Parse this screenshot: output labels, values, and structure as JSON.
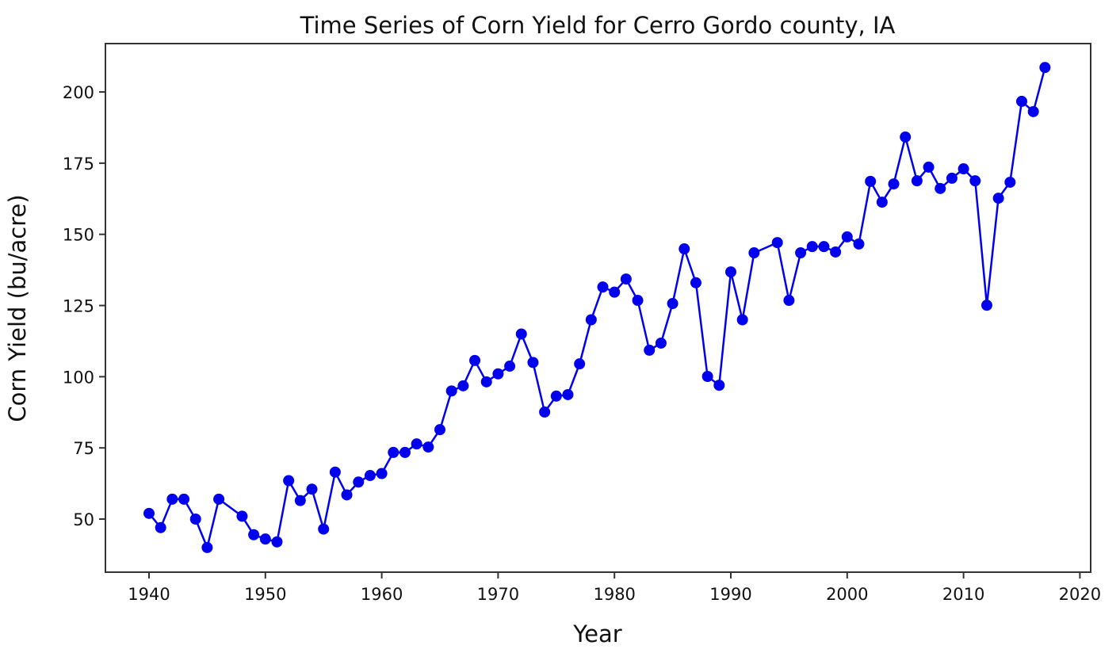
{
  "chart_data": {
    "type": "line",
    "title": "Time Series of Corn Yield for Cerro Gordo county, IA",
    "xlabel": "Year",
    "ylabel": "Corn Yield (bu/acre)",
    "xlim": [
      1936.8,
      2021
    ],
    "ylim": [
      32,
      217
    ],
    "xticks": [
      1940,
      1950,
      1960,
      1970,
      1980,
      1990,
      2000,
      2010,
      2020
    ],
    "yticks": [
      50,
      75,
      100,
      125,
      150,
      175,
      200
    ],
    "grid": false,
    "legend": null,
    "marker": "circle",
    "color": "#0000ee",
    "series": [
      {
        "name": "Corn Yield",
        "x": [
          1940,
          1941,
          1942,
          1943,
          1944,
          1945,
          1946,
          1948,
          1949,
          1950,
          1951,
          1952,
          1953,
          1954,
          1955,
          1956,
          1957,
          1958,
          1959,
          1960,
          1961,
          1962,
          1963,
          1964,
          1965,
          1966,
          1967,
          1968,
          1969,
          1970,
          1971,
          1972,
          1973,
          1974,
          1975,
          1976,
          1977,
          1978,
          1979,
          1980,
          1981,
          1982,
          1983,
          1984,
          1985,
          1986,
          1987,
          1988,
          1989,
          1990,
          1991,
          1992,
          1994,
          1995,
          1996,
          1997,
          1998,
          1999,
          2000,
          2001,
          2002,
          2003,
          2004,
          2005,
          2006,
          2007,
          2008,
          2009,
          2010,
          2011,
          2012,
          2013,
          2014,
          2015,
          2016,
          2017
        ],
        "values": [
          52,
          47,
          57,
          57,
          50,
          40,
          57,
          51,
          44.5,
          43,
          42,
          63.5,
          56.5,
          60.5,
          46.5,
          66.5,
          58.5,
          63,
          65.3,
          66,
          73.4,
          73.4,
          76.4,
          75.3,
          81.4,
          95,
          96.8,
          105.7,
          98.2,
          101,
          103.7,
          115,
          105,
          87.6,
          93.2,
          93.7,
          104.5,
          120,
          131.5,
          129.7,
          134.3,
          126.8,
          109.3,
          111.8,
          125.7,
          144.9,
          133,
          100.1,
          97,
          136.8,
          120,
          143.5,
          147.1,
          126.8,
          143.5,
          145.7,
          145.7,
          143.8,
          149.1,
          146.6,
          168.6,
          161.3,
          167.7,
          184.2,
          168.8,
          173.6,
          166.1,
          169.7,
          173,
          168.8,
          125.1,
          162.7,
          168.3,
          196.7,
          193.1,
          208.6
        ]
      }
    ]
  },
  "labels": {
    "title": "Time Series of Corn Yield for Cerro Gordo county, IA",
    "xlabel": "Year",
    "ylabel": "Corn Yield (bu/acre)"
  }
}
